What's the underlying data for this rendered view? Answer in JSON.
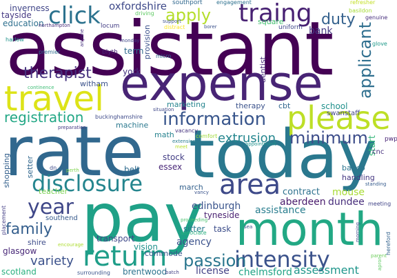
{
  "word_cloud": {
    "words": [
      {
        "text": "assistant",
        "color": "#440154"
      },
      {
        "text": "expense",
        "color": "#482475"
      },
      {
        "text": "today",
        "color": "#2a788e"
      },
      {
        "text": "rate",
        "color": "#31688e"
      },
      {
        "text": "pay",
        "color": "#1fa187"
      },
      {
        "text": "month",
        "color": "#22a884"
      },
      {
        "text": "travel",
        "color": "#dde318"
      },
      {
        "text": "please",
        "color": "#bddf26"
      },
      {
        "text": "area",
        "color": "#3e4a89"
      },
      {
        "text": "return",
        "color": "#1f9e89"
      },
      {
        "text": "intensity",
        "color": "#3b528b"
      },
      {
        "text": "disclosure",
        "color": "#25858e"
      },
      {
        "text": "information",
        "color": "#39568c"
      },
      {
        "text": "traing",
        "color": "#482173"
      },
      {
        "text": "click",
        "color": "#2c728e"
      },
      {
        "text": "year",
        "color": "#3f4788"
      },
      {
        "text": "passion",
        "color": "#2a768e"
      },
      {
        "text": "family",
        "color": "#355f8d"
      },
      {
        "text": "apply",
        "color": "#b5de2b"
      },
      {
        "text": "minimum",
        "color": "#3d4d8a"
      },
      {
        "text": "therapist",
        "color": "#46327e"
      },
      {
        "text": "applicant",
        "color": "#2e6e8e"
      },
      {
        "text": "registration",
        "color": "#22a785"
      },
      {
        "text": "assessment",
        "color": "#1f968b"
      },
      {
        "text": "variety",
        "color": "#3b518b"
      },
      {
        "text": "extrusion",
        "color": "#24868e"
      },
      {
        "text": "duty",
        "color": "#34618d"
      },
      {
        "text": "bank",
        "color": "#443983"
      },
      {
        "text": "inverness",
        "color": "#404588"
      },
      {
        "text": "oxfordshire",
        "color": "#3e4989"
      },
      {
        "text": "tayside",
        "color": "#453882"
      },
      {
        "text": "education",
        "color": "#2e6f8e"
      },
      {
        "text": "school",
        "color": "#21918c"
      },
      {
        "text": "swanstaff",
        "color": "#414487"
      },
      {
        "text": "aberdeen",
        "color": "#481a6c"
      },
      {
        "text": "dundee",
        "color": "#472d7b"
      },
      {
        "text": "mouse",
        "color": "#a8db34"
      },
      {
        "text": "contract",
        "color": "#2d718e"
      },
      {
        "text": "assistance",
        "color": "#287d8e"
      },
      {
        "text": "edinburgh",
        "color": "#3a548c"
      },
      {
        "text": "task",
        "color": "#3d4e8a"
      },
      {
        "text": "agency",
        "color": "#3b528b"
      },
      {
        "text": "vision",
        "color": "#21918c"
      },
      {
        "text": "license",
        "color": "#424186"
      },
      {
        "text": "chelmsford",
        "color": "#20a386"
      },
      {
        "text": "brentwood",
        "color": "#2c738e"
      },
      {
        "text": "scotland",
        "color": "#2ab07f"
      },
      {
        "text": "glasgow",
        "color": "#482878"
      },
      {
        "text": "shire",
        "color": "#3e4c8a"
      },
      {
        "text": "transport",
        "color": "#3e4989"
      },
      {
        "text": "commode",
        "color": "#39568c"
      },
      {
        "text": "southend",
        "color": "#375a8c"
      },
      {
        "text": "tyneside",
        "color": "#481f70"
      },
      {
        "text": "sitter",
        "color": "#2a778e"
      },
      {
        "text": "teacher",
        "color": "#7ad151"
      },
      {
        "text": "setter",
        "color": "#31678e"
      },
      {
        "text": "shopping",
        "color": "#34608d"
      },
      {
        "text": "essex",
        "color": "#482677"
      },
      {
        "text": "stock",
        "color": "#433e85"
      },
      {
        "text": "belt",
        "color": "#2f6b8e"
      },
      {
        "text": "math",
        "color": "#26828e"
      },
      {
        "text": "machine",
        "color": "#2a788e"
      },
      {
        "text": "marketing",
        "color": "#25848e"
      },
      {
        "text": "therapy",
        "color": "#3b528b"
      },
      {
        "text": "cbt",
        "color": "#31678e"
      },
      {
        "text": "march",
        "color": "#34618d"
      },
      {
        "text": "handling",
        "color": "#453781"
      },
      {
        "text": "babcp",
        "color": "#2b748e"
      },
      {
        "text": "start",
        "color": "#35b779"
      },
      {
        "text": "dentist",
        "color": "#472c7a"
      },
      {
        "text": "square",
        "color": "#44bf70"
      },
      {
        "text": "york",
        "color": "#463480"
      },
      {
        "text": "witham",
        "color": "#3b528b"
      },
      {
        "text": "term",
        "color": "#306a8e"
      },
      {
        "text": "provision",
        "color": "#3b518b"
      },
      {
        "text": "buckinghamshire",
        "color": "#3e4a89"
      },
      {
        "text": "blyth",
        "color": "#482677"
      },
      {
        "text": "locum",
        "color": "#433d84"
      },
      {
        "text": "driving",
        "color": "#5ec962"
      },
      {
        "text": "southport",
        "color": "#31688e"
      },
      {
        "text": "support",
        "color": "#3c508b"
      },
      {
        "text": "engagement",
        "color": "#2d708e"
      },
      {
        "text": "refresher",
        "color": "#c2df23"
      },
      {
        "text": "basildon",
        "color": "#a5db36"
      },
      {
        "text": "uniform",
        "color": "#3f4889"
      },
      {
        "text": "genuine",
        "color": "#472f7d"
      },
      {
        "text": "glove",
        "color": "#1f998a"
      },
      {
        "text": "harlow",
        "color": "#20928c"
      },
      {
        "text": "premier",
        "color": "#2e6d8e"
      },
      {
        "text": "northampton",
        "color": "#472c7a"
      },
      {
        "text": "anyone",
        "color": "#46317e"
      },
      {
        "text": "monday",
        "color": "#3f4788"
      },
      {
        "text": "micro",
        "color": "#31678e"
      },
      {
        "text": "distract",
        "color": "#fde725"
      },
      {
        "text": "borer",
        "color": "#3b518b"
      },
      {
        "text": "continence",
        "color": "#3dbc74"
      },
      {
        "text": "situation",
        "color": "#3f4788"
      },
      {
        "text": "vacancy",
        "color": "#46337f"
      },
      {
        "text": "comfort",
        "color": "#a0da39"
      },
      {
        "text": "preparation",
        "color": "#443a83"
      },
      {
        "text": "extension",
        "color": "#287c8e"
      },
      {
        "text": "meet",
        "color": "#b8de29"
      },
      {
        "text": "appointment",
        "color": "#21918c"
      },
      {
        "text": "cnc",
        "color": "#46307e"
      },
      {
        "text": "pwp",
        "color": "#482475"
      },
      {
        "text": "standing",
        "color": "#365c8d"
      },
      {
        "text": "dn",
        "color": "#3e4a89"
      },
      {
        "text": "perth",
        "color": "#7fd34e"
      },
      {
        "text": "vancy",
        "color": "#3a538b"
      },
      {
        "text": "proceeding",
        "color": "#4ac16d"
      },
      {
        "text": "sea",
        "color": "#3b528b"
      },
      {
        "text": "placement",
        "color": "#433e85"
      },
      {
        "text": "encourage",
        "color": "#addc30"
      },
      {
        "text": "associate",
        "color": "#2ab07f"
      },
      {
        "text": "surrounding",
        "color": "#3a548c"
      },
      {
        "text": "batch",
        "color": "#424086"
      },
      {
        "text": "morning",
        "color": "#3f4889"
      },
      {
        "text": "meeting",
        "color": "#414487"
      },
      {
        "text": "parent",
        "color": "#6ccd5a"
      },
      {
        "text": "apron",
        "color": "#5ec962"
      },
      {
        "text": "hereford",
        "color": "#33638d"
      }
    ]
  }
}
